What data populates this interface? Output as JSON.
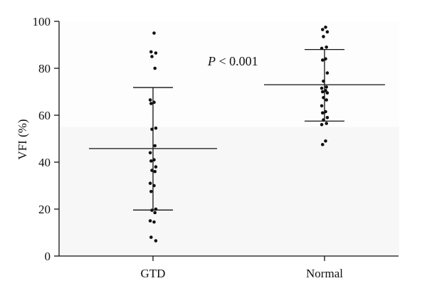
{
  "chart_data": {
    "type": "scatter",
    "ylabel": "VFI (%)",
    "ylim": [
      0,
      100
    ],
    "yticks": [
      0,
      20,
      40,
      60,
      80,
      100
    ],
    "categories": [
      "GTD",
      "Normal"
    ],
    "annotation": {
      "italic": "P",
      "rest": " < 0.001"
    },
    "grid": false,
    "series": [
      {
        "values": [
          95,
          87,
          86.5,
          85,
          80,
          66.5,
          65.5,
          65,
          54.5,
          54,
          47,
          44,
          41,
          40.5,
          38,
          36.5,
          36,
          31,
          30,
          27.5,
          20,
          19.5,
          18.5,
          15,
          14.5,
          8,
          6.5
        ],
        "mean": 45.8,
        "sd_upper": 71.8,
        "sd_lower": 19.6
      },
      {
        "values": [
          97.5,
          96.5,
          95.5,
          93.5,
          89,
          88.5,
          84,
          83.5,
          78,
          74.5,
          72,
          71.5,
          70.5,
          70,
          69.5,
          67.5,
          66.5,
          64,
          61.5,
          61,
          59,
          58,
          56.5,
          56,
          49,
          47.5
        ],
        "mean": 73,
        "sd_upper": 88,
        "sd_lower": 57.5
      }
    ]
  }
}
